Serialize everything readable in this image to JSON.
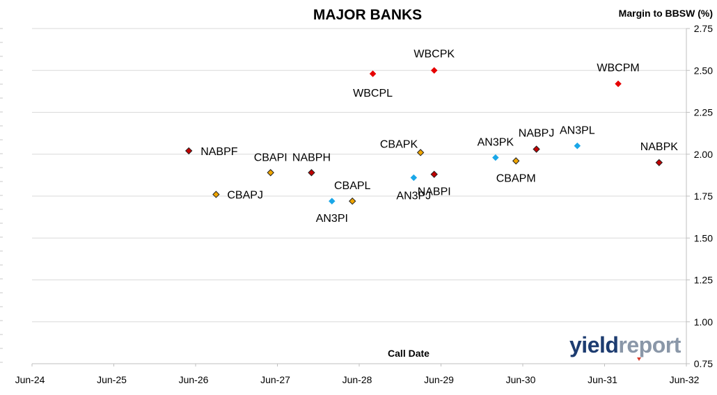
{
  "chart_data": {
    "type": "scatter",
    "title": "MAJOR BANKS",
    "xlabel": "Call Date",
    "ylabel": "Margin to BBSW (%)",
    "x_ticks": [
      "Jun-24",
      "Jun-25",
      "Jun-26",
      "Jun-27",
      "Jun-28",
      "Jun-29",
      "Jun-30",
      "Jun-31",
      "Jun-32"
    ],
    "y_ticks": [
      "0.75",
      "1.00",
      "1.25",
      "1.50",
      "1.75",
      "2.00",
      "2.25",
      "2.50",
      "2.75"
    ],
    "ylim": [
      0.75,
      2.75
    ],
    "xlim": [
      "Jun-24",
      "Jun-32"
    ],
    "grid": "horizontal",
    "y_axis_side": "right",
    "series": [
      {
        "color": "#e60000",
        "marker": "diamond",
        "points": [
          {
            "label": "WBCPL",
            "x": "2028-09",
            "y": 2.48
          },
          {
            "label": "WBCPK",
            "x": "2029-06",
            "y": 2.5
          },
          {
            "label": "WBCPM",
            "x": "2031-09",
            "y": 2.42
          }
        ]
      },
      {
        "color": "#c00000",
        "marker": "diamond-outline",
        "points": [
          {
            "label": "NABPF",
            "x": "2026-06",
            "y": 2.02
          },
          {
            "label": "NABPH",
            "x": "2027-12",
            "y": 1.89
          },
          {
            "label": "NABPI",
            "x": "2029-06",
            "y": 1.88
          },
          {
            "label": "NABPJ",
            "x": "2030-09",
            "y": 2.03
          },
          {
            "label": "NABPK",
            "x": "2032-03",
            "y": 1.95
          }
        ]
      },
      {
        "color": "#f0a500",
        "marker": "diamond-outline",
        "points": [
          {
            "label": "CBAPJ",
            "x": "2026-10",
            "y": 1.76
          },
          {
            "label": "CBAPI",
            "x": "2027-06",
            "y": 1.89
          },
          {
            "label": "CBAPL",
            "x": "2028-06",
            "y": 1.72
          },
          {
            "label": "CBAPK",
            "x": "2029-04",
            "y": 2.01
          },
          {
            "label": "CBAPM",
            "x": "2030-06",
            "y": 1.96
          }
        ]
      },
      {
        "color": "#1aa7e8",
        "marker": "diamond",
        "points": [
          {
            "label": "AN3PI",
            "x": "2028-03",
            "y": 1.72
          },
          {
            "label": "AN3PJ",
            "x": "2029-03",
            "y": 1.86
          },
          {
            "label": "AN3PK",
            "x": "2030-03",
            "y": 1.98
          },
          {
            "label": "AN3PL",
            "x": "2031-03",
            "y": 2.05
          }
        ]
      }
    ]
  },
  "logo": {
    "text_part1": "yield",
    "text_part2": "report"
  }
}
